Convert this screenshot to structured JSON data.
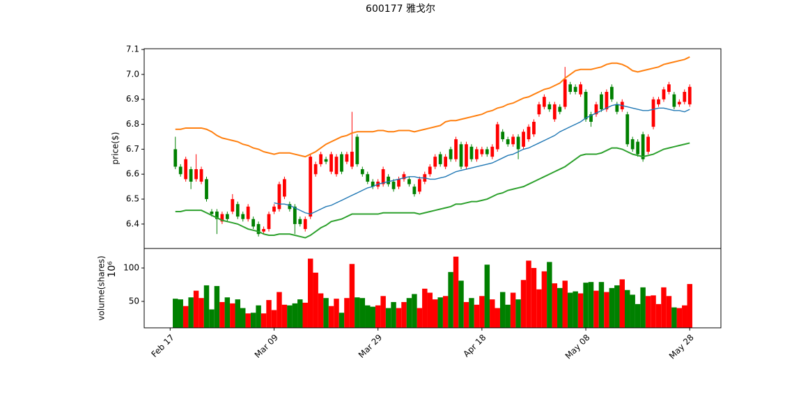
{
  "chart_data": {
    "type": "candlestick",
    "title": "600177   雅戈尔",
    "x": [
      "Feb 18",
      "Feb 19",
      "Feb 20",
      "Feb 21",
      "Feb 22",
      "Feb 23",
      "Feb 24",
      "Feb 25",
      "Feb 26",
      "Feb 27",
      "Feb 28",
      "Mar 01",
      "Mar 02",
      "Mar 03",
      "Mar 04",
      "Mar 05",
      "Mar 06",
      "Mar 07",
      "Mar 08",
      "Mar 09",
      "Mar 10",
      "Mar 11",
      "Mar 12",
      "Mar 13",
      "Mar 14",
      "Mar 15",
      "Mar 16",
      "Mar 17",
      "Mar 18",
      "Mar 19",
      "Mar 20",
      "Mar 21",
      "Mar 22",
      "Mar 23",
      "Mar 24",
      "Mar 25",
      "Mar 26",
      "Mar 27",
      "Mar 28",
      "Mar 29",
      "Mar 30",
      "Mar 31",
      "Apr 01",
      "Apr 02",
      "Apr 03",
      "Apr 04",
      "Apr 05",
      "Apr 06",
      "Apr 07",
      "Apr 08",
      "Apr 09",
      "Apr 10",
      "Apr 11",
      "Apr 12",
      "Apr 13",
      "Apr 14",
      "Apr 15",
      "Apr 16",
      "Apr 17",
      "Apr 18",
      "Apr 19",
      "Apr 20",
      "Apr 21",
      "Apr 22",
      "Apr 23",
      "Apr 24",
      "Apr 25",
      "Apr 26",
      "Apr 27",
      "Apr 28",
      "Apr 29",
      "Apr 30",
      "May 01",
      "May 02",
      "May 03",
      "May 04",
      "May 05",
      "May 06",
      "May 07",
      "May 08",
      "May 09",
      "May 10",
      "May 11",
      "May 12",
      "May 13",
      "May 14",
      "May 15",
      "May 16",
      "May 17",
      "May 18",
      "May 19",
      "May 20",
      "May 21",
      "May 22",
      "May 23",
      "May 24",
      "May 25",
      "May 26",
      "May 27",
      "May 28"
    ],
    "xlim": [
      "Feb 12",
      "Jun 03"
    ],
    "xticks": [
      "Feb 17",
      "Mar 09",
      "Mar 29",
      "Apr 18",
      "May 08",
      "May 28"
    ],
    "ylabel": "price($)",
    "ylim": [
      6.302,
      7.103
    ],
    "yticks": [
      6.4,
      6.5,
      6.6,
      6.7,
      6.8,
      6.9,
      {
        "value": 7.0,
        "label": "7.0"
      },
      7.1
    ],
    "up_color": "#ff0000",
    "down_color": "#008000",
    "open": [
      6.7,
      6.63,
      6.58,
      6.62,
      6.58,
      6.57,
      6.58,
      6.45,
      6.45,
      6.41,
      6.44,
      6.45,
      6.48,
      6.44,
      6.42,
      6.42,
      6.4,
      6.37,
      6.38,
      6.45,
      6.46,
      6.51,
      6.48,
      6.47,
      6.42,
      6.38,
      6.43,
      6.6,
      6.64,
      6.66,
      6.61,
      6.6,
      6.68,
      6.65,
      6.63,
      6.75,
      6.62,
      6.6,
      6.57,
      6.55,
      6.56,
      6.59,
      6.57,
      6.55,
      6.58,
      6.58,
      6.55,
      6.53,
      6.57,
      6.6,
      6.63,
      6.68,
      6.63,
      6.7,
      6.66,
      6.72,
      6.63,
      6.71,
      6.66,
      6.68,
      6.7,
      6.67,
      6.7,
      6.77,
      6.74,
      6.72,
      6.75,
      6.71,
      6.74,
      6.76,
      6.84,
      6.87,
      6.88,
      6.82,
      6.87,
      6.87,
      6.96,
      6.95,
      6.92,
      6.93,
      6.84,
      6.84,
      6.92,
      6.86,
      6.95,
      6.88,
      6.86,
      6.84,
      6.74,
      6.73,
      6.76,
      6.69,
      6.79,
      6.88,
      6.9,
      6.93,
      6.92,
      6.88,
      6.89,
      6.88
    ],
    "high": [
      6.75,
      6.64,
      6.67,
      6.63,
      6.68,
      6.63,
      6.59,
      6.46,
      6.46,
      6.45,
      6.45,
      6.52,
      6.49,
      6.45,
      6.48,
      6.43,
      6.41,
      6.39,
      6.45,
      6.48,
      6.57,
      6.59,
      6.49,
      6.48,
      6.43,
      6.43,
      6.68,
      6.65,
      6.69,
      6.67,
      6.69,
      6.68,
      6.69,
      6.69,
      6.85,
      6.76,
      6.63,
      6.61,
      6.58,
      6.58,
      6.63,
      6.6,
      6.58,
      6.59,
      6.61,
      6.59,
      6.56,
      6.59,
      6.61,
      6.64,
      6.68,
      6.69,
      6.68,
      6.71,
      6.75,
      6.73,
      6.73,
      6.72,
      6.71,
      6.71,
      6.71,
      6.72,
      6.81,
      6.78,
      6.75,
      6.76,
      6.76,
      6.78,
      6.8,
      6.82,
      6.89,
      6.92,
      6.89,
      6.89,
      6.88,
      7.03,
      6.97,
      6.96,
      6.97,
      6.94,
      6.85,
      6.89,
      6.93,
      6.94,
      6.96,
      6.89,
      6.9,
      6.85,
      6.75,
      6.74,
      6.77,
      6.76,
      6.91,
      6.91,
      6.95,
      6.97,
      6.93,
      6.9,
      6.94,
      6.96
    ],
    "low": [
      6.62,
      6.59,
      6.57,
      6.54,
      6.57,
      6.56,
      6.49,
      6.43,
      6.36,
      6.4,
      6.41,
      6.44,
      6.42,
      6.41,
      6.41,
      6.38,
      6.35,
      6.36,
      6.37,
      6.44,
      6.45,
      6.5,
      6.45,
      6.36,
      6.39,
      6.37,
      6.42,
      6.59,
      6.63,
      6.64,
      6.6,
      6.59,
      6.6,
      6.64,
      6.62,
      6.63,
      6.59,
      6.56,
      6.54,
      6.54,
      6.55,
      6.55,
      6.53,
      6.54,
      6.57,
      6.55,
      6.51,
      6.52,
      6.56,
      6.59,
      6.62,
      6.63,
      6.62,
      6.65,
      6.65,
      6.62,
      6.62,
      6.65,
      6.65,
      6.67,
      6.67,
      6.66,
      6.69,
      6.73,
      6.71,
      6.71,
      6.66,
      6.7,
      6.73,
      6.75,
      6.83,
      6.86,
      6.85,
      6.81,
      6.84,
      6.86,
      6.92,
      6.92,
      6.91,
      6.81,
      6.79,
      6.83,
      6.85,
      6.85,
      6.89,
      6.84,
      6.85,
      6.71,
      6.69,
      6.67,
      6.65,
      6.68,
      6.78,
      6.87,
      6.89,
      6.92,
      6.86,
      6.87,
      6.88,
      6.87
    ],
    "close": [
      6.63,
      6.6,
      6.66,
      6.57,
      6.62,
      6.62,
      6.5,
      6.44,
      6.42,
      6.44,
      6.42,
      6.5,
      6.43,
      6.42,
      6.47,
      6.39,
      6.36,
      6.38,
      6.44,
      6.47,
      6.56,
      6.58,
      6.46,
      6.4,
      6.4,
      6.42,
      6.67,
      6.64,
      6.68,
      6.65,
      6.68,
      6.67,
      6.61,
      6.68,
      6.69,
      6.64,
      6.6,
      6.57,
      6.55,
      6.57,
      6.62,
      6.56,
      6.54,
      6.58,
      6.6,
      6.56,
      6.52,
      6.58,
      6.6,
      6.63,
      6.67,
      6.64,
      6.67,
      6.66,
      6.74,
      6.63,
      6.72,
      6.66,
      6.7,
      6.7,
      6.68,
      6.71,
      6.8,
      6.74,
      6.72,
      6.75,
      6.7,
      6.77,
      6.79,
      6.81,
      6.88,
      6.91,
      6.86,
      6.88,
      6.85,
      6.98,
      6.93,
      6.93,
      6.96,
      6.82,
      6.81,
      6.88,
      6.86,
      6.93,
      6.9,
      6.85,
      6.89,
      6.72,
      6.7,
      6.68,
      6.66,
      6.75,
      6.9,
      6.9,
      6.94,
      6.96,
      6.87,
      6.89,
      6.93,
      6.95
    ],
    "lines": [
      {
        "color": "#ff7f0e",
        "width": 2,
        "values": [
          6.78,
          6.78,
          6.785,
          6.785,
          6.785,
          6.785,
          6.78,
          6.77,
          6.755,
          6.745,
          6.74,
          6.735,
          6.73,
          6.72,
          6.715,
          6.705,
          6.7,
          6.69,
          6.685,
          6.68,
          6.685,
          6.685,
          6.685,
          6.68,
          6.675,
          6.67,
          6.68,
          6.69,
          6.705,
          6.72,
          6.73,
          6.74,
          6.75,
          6.755,
          6.765,
          6.77,
          6.77,
          6.77,
          6.77,
          6.775,
          6.775,
          6.77,
          6.77,
          6.775,
          6.775,
          6.775,
          6.77,
          6.775,
          6.78,
          6.785,
          6.79,
          6.795,
          6.81,
          6.815,
          6.815,
          6.82,
          6.825,
          6.83,
          6.835,
          6.84,
          6.85,
          6.855,
          6.865,
          6.87,
          6.88,
          6.885,
          6.895,
          6.905,
          6.91,
          6.92,
          6.93,
          6.94,
          6.945,
          6.955,
          6.965,
          6.985,
          7.0,
          7.015,
          7.02,
          7.02,
          7.02,
          7.025,
          7.03,
          7.04,
          7.045,
          7.045,
          7.04,
          7.03,
          7.015,
          7.01,
          7.015,
          7.02,
          7.025,
          7.03,
          7.04,
          7.045,
          7.05,
          7.055,
          7.06,
          7.07
        ]
      },
      {
        "color": "#2ca02c",
        "width": 2,
        "values": [
          6.45,
          6.45,
          6.455,
          6.455,
          6.455,
          6.455,
          6.445,
          6.435,
          6.425,
          6.415,
          6.41,
          6.405,
          6.4,
          6.39,
          6.38,
          6.375,
          6.37,
          6.36,
          6.355,
          6.355,
          6.36,
          6.36,
          6.36,
          6.355,
          6.35,
          6.345,
          6.355,
          6.37,
          6.385,
          6.395,
          6.41,
          6.415,
          6.42,
          6.43,
          6.44,
          6.44,
          6.44,
          6.44,
          6.44,
          6.44,
          6.445,
          6.445,
          6.445,
          6.445,
          6.445,
          6.445,
          6.445,
          6.44,
          6.445,
          6.45,
          6.455,
          6.46,
          6.465,
          6.47,
          6.48,
          6.48,
          6.485,
          6.49,
          6.49,
          6.495,
          6.5,
          6.51,
          6.52,
          6.525,
          6.535,
          6.54,
          6.545,
          6.55,
          6.56,
          6.57,
          6.58,
          6.59,
          6.6,
          6.61,
          6.62,
          6.63,
          6.645,
          6.66,
          6.675,
          6.68,
          6.68,
          6.68,
          6.685,
          6.695,
          6.705,
          6.705,
          6.7,
          6.69,
          6.68,
          6.675,
          6.67,
          6.675,
          6.68,
          6.69,
          6.7,
          6.705,
          6.71,
          6.715,
          6.72,
          6.725
        ]
      },
      {
        "color": "#1f77b4",
        "width": 1.4,
        "values": [
          null,
          null,
          null,
          null,
          null,
          null,
          null,
          null,
          null,
          null,
          null,
          null,
          null,
          null,
          null,
          null,
          null,
          null,
          null,
          6.485,
          6.48,
          6.48,
          6.475,
          6.465,
          6.455,
          6.445,
          6.44,
          6.45,
          6.46,
          6.47,
          6.475,
          6.485,
          6.495,
          6.505,
          6.515,
          6.525,
          6.535,
          6.545,
          6.55,
          6.56,
          6.565,
          6.57,
          6.575,
          6.58,
          6.585,
          6.59,
          6.59,
          6.585,
          6.585,
          6.58,
          6.58,
          6.585,
          6.59,
          6.6,
          6.61,
          6.615,
          6.62,
          6.625,
          6.63,
          6.635,
          6.64,
          6.645,
          6.655,
          6.665,
          6.675,
          6.68,
          6.69,
          6.7,
          6.705,
          6.715,
          6.725,
          6.735,
          6.745,
          6.755,
          6.77,
          6.78,
          6.79,
          6.8,
          6.81,
          6.825,
          6.835,
          6.845,
          6.855,
          6.865,
          6.875,
          6.88,
          6.875,
          6.87,
          6.865,
          6.86,
          6.855,
          6.855,
          6.86,
          6.865,
          6.865,
          6.86,
          6.855,
          6.855,
          6.85,
          6.86
        ]
      }
    ],
    "volume": {
      "ylabel": "volume(shares)",
      "offset_label": "10⁶",
      "ylim": [
        10.4,
        129.2
      ],
      "yticks": [
        50,
        100
      ],
      "values": [
        54,
        53,
        43,
        56,
        66,
        55,
        74,
        38,
        73,
        49,
        56,
        47,
        53,
        40,
        32,
        33,
        44,
        32,
        52,
        37,
        64,
        45,
        44,
        47,
        53,
        48,
        114,
        93,
        62,
        55,
        43,
        54,
        33,
        55,
        106,
        56,
        55,
        44,
        42,
        44,
        58,
        40,
        49,
        40,
        49,
        55,
        61,
        40,
        69,
        63,
        53,
        56,
        58,
        94,
        117,
        81,
        49,
        55,
        45,
        58,
        105,
        53,
        40,
        64,
        45,
        63,
        53,
        82,
        111,
        100,
        68,
        95,
        109,
        77,
        70,
        81,
        63,
        65,
        62,
        78,
        79,
        66,
        79,
        64,
        70,
        74,
        83,
        67,
        60,
        46,
        71,
        58,
        59,
        46,
        71,
        58,
        41,
        40,
        44,
        76
      ]
    }
  }
}
